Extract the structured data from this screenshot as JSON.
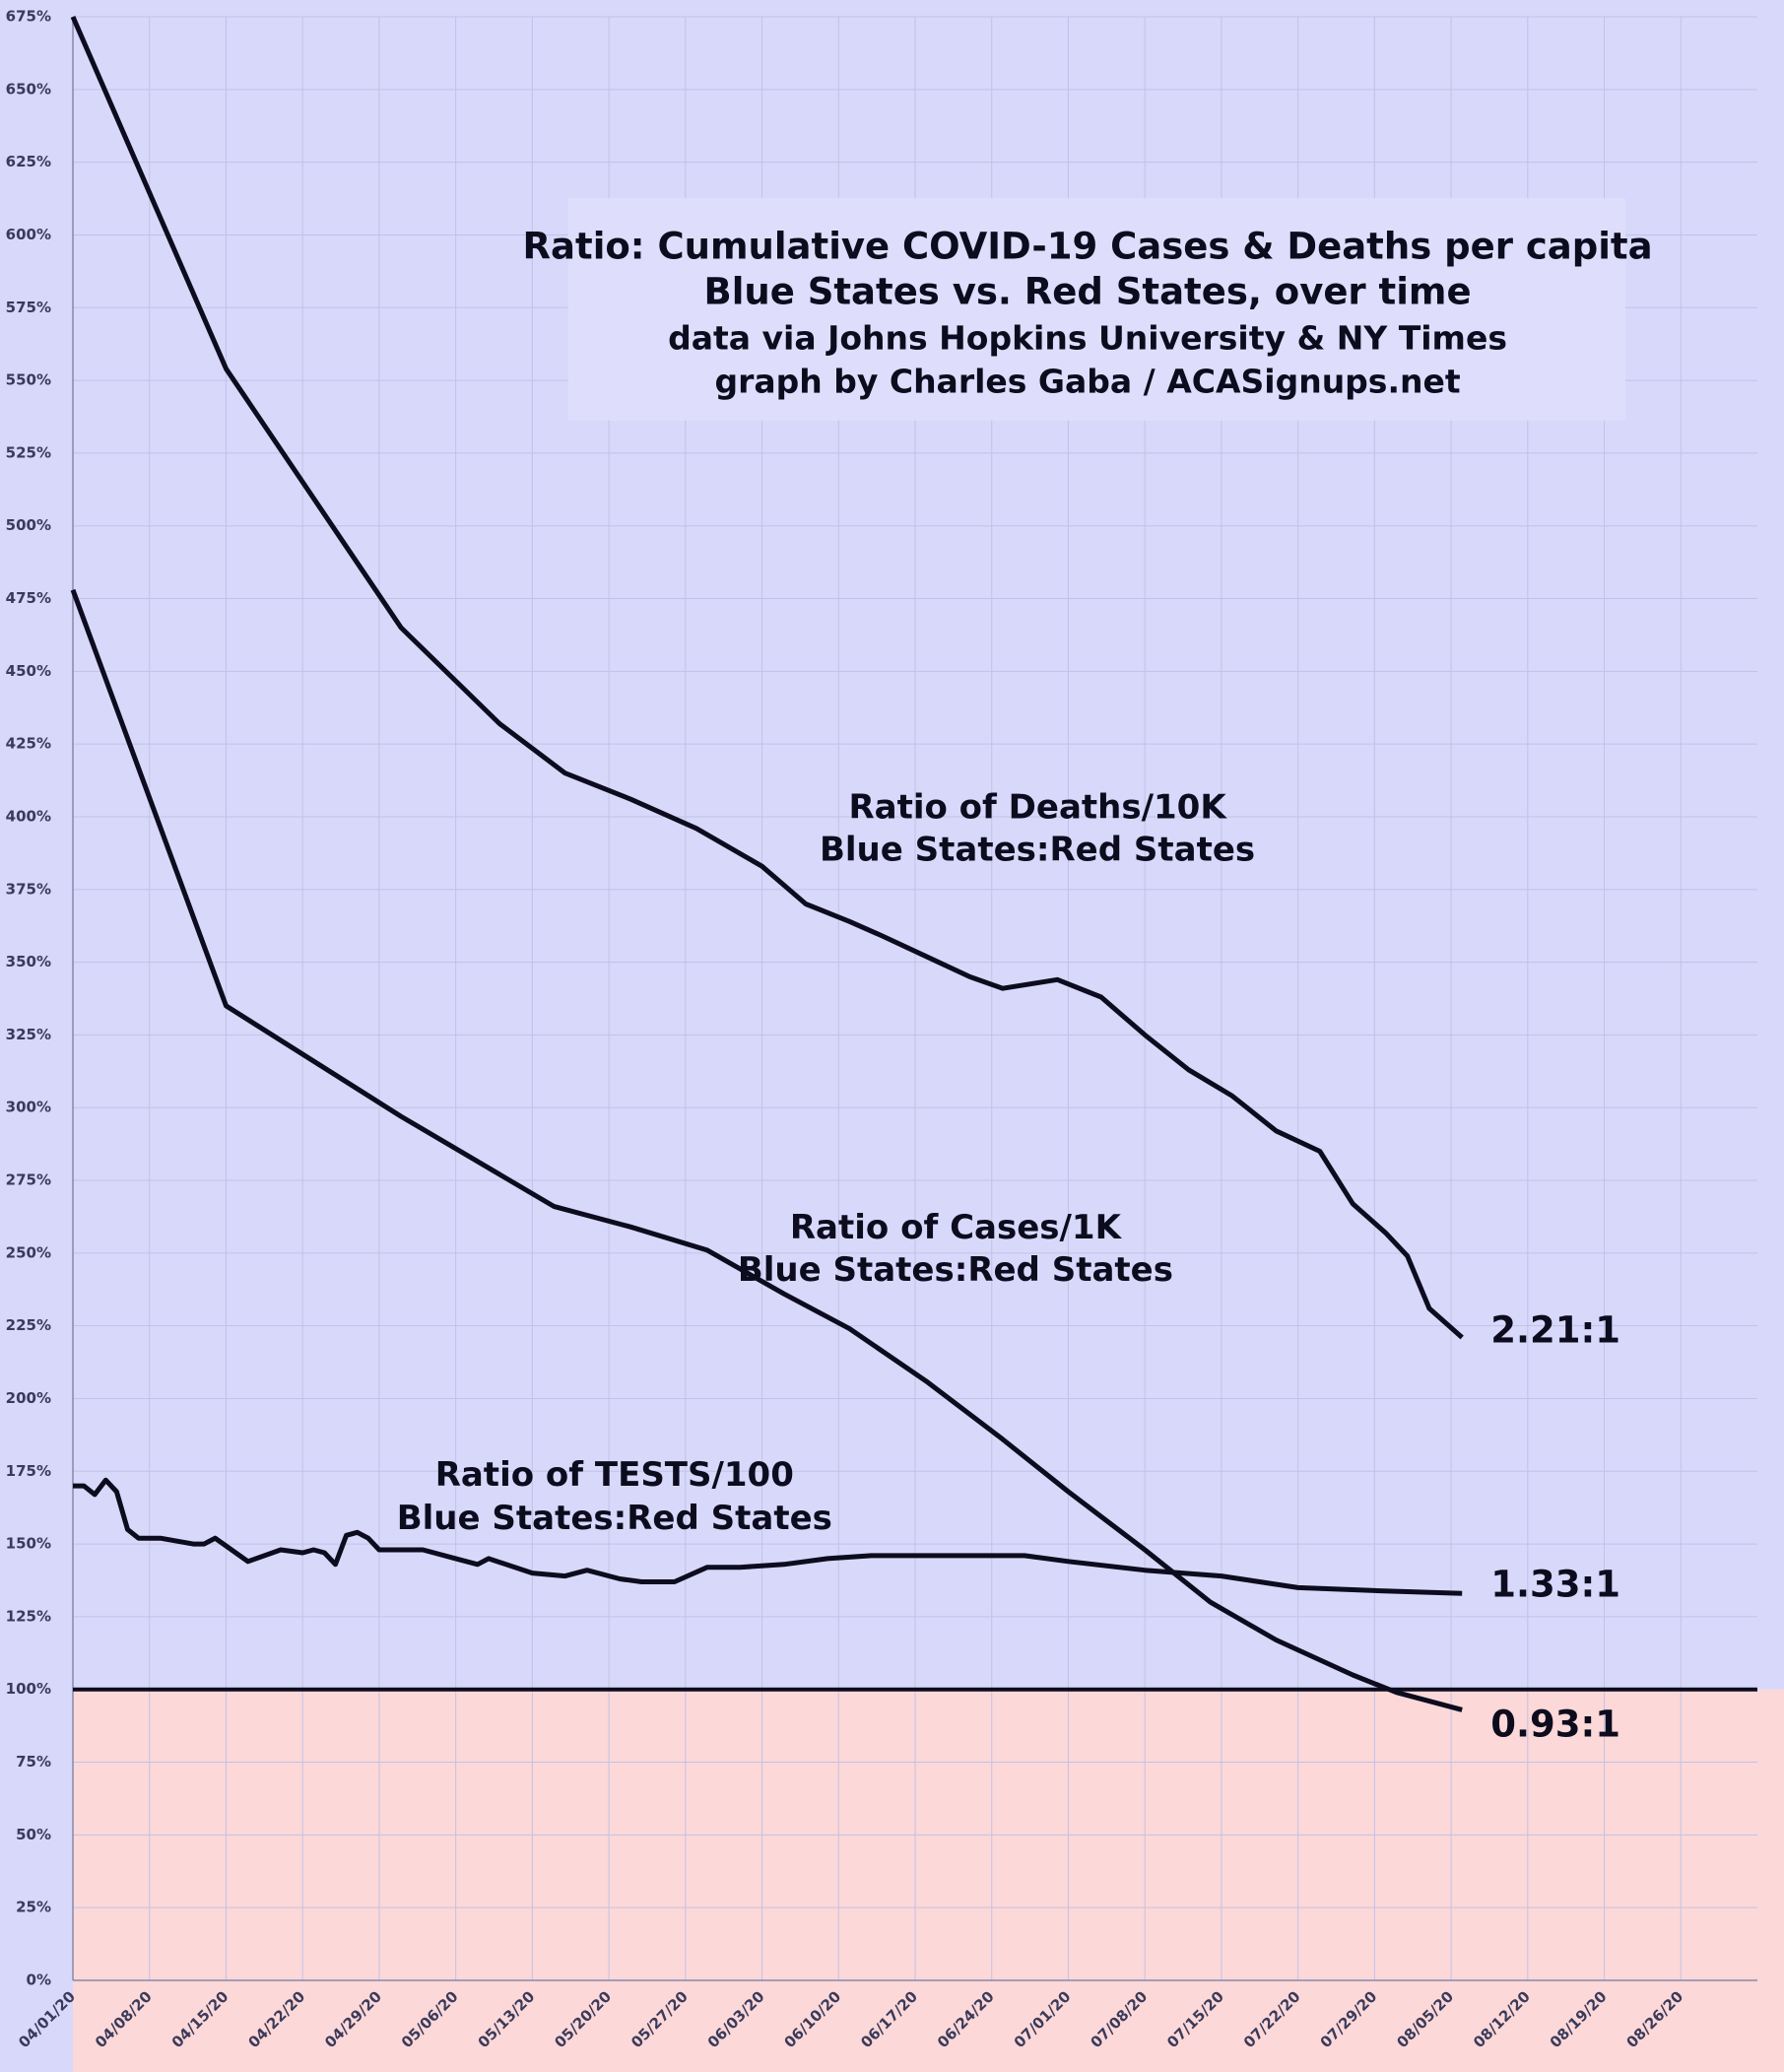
{
  "chart_data": {
    "type": "line",
    "title": [
      "Ratio: Cumulative COVID-19 Cases & Deaths per capita",
      "Blue States vs. Red States, over time",
      "data via Johns Hopkins University & NY Times",
      "graph by Charles Gaba / ACASignups.net"
    ],
    "xlim": [
      "04/01/20",
      "09/02/20"
    ],
    "xticks": [
      "04/01/20",
      "04/08/20",
      "04/15/20",
      "04/22/20",
      "04/29/20",
      "05/06/20",
      "05/13/20",
      "05/20/20",
      "05/27/20",
      "06/03/20",
      "06/10/20",
      "06/17/20",
      "06/24/20",
      "07/01/20",
      "07/08/20",
      "07/15/20",
      "07/22/20",
      "07/29/20",
      "08/05/20",
      "08/12/20",
      "08/19/20",
      "08/26/20"
    ],
    "ylim": [
      0,
      675
    ],
    "yticks": [
      {
        "value": 0,
        "label": "0%"
      },
      {
        "value": 25,
        "label": "25%"
      },
      {
        "value": 50,
        "label": "50%"
      },
      {
        "value": 75,
        "label": "75%"
      },
      {
        "value": 100,
        "label": "100%"
      },
      {
        "value": 125,
        "label": "125%"
      },
      {
        "value": 150,
        "label": "150%"
      },
      {
        "value": 175,
        "label": "175%"
      },
      {
        "value": 200,
        "label": "200%"
      },
      {
        "value": 225,
        "label": "225%"
      },
      {
        "value": 250,
        "label": "250%"
      },
      {
        "value": 275,
        "label": "275%"
      },
      {
        "value": 300,
        "label": "300%"
      },
      {
        "value": 325,
        "label": "325%"
      },
      {
        "value": 350,
        "label": "350%"
      },
      {
        "value": 375,
        "label": "375%"
      },
      {
        "value": 400,
        "label": "400%"
      },
      {
        "value": 425,
        "label": "425%"
      },
      {
        "value": 450,
        "label": "450%"
      },
      {
        "value": 475,
        "label": "475%"
      },
      {
        "value": 500,
        "label": "500%"
      },
      {
        "value": 525,
        "label": "525%"
      },
      {
        "value": 550,
        "label": "550%"
      },
      {
        "value": 575,
        "label": "575%"
      },
      {
        "value": 600,
        "label": "600%"
      },
      {
        "value": 625,
        "label": "625%"
      },
      {
        "value": 650,
        "label": "650%"
      },
      {
        "value": 675,
        "label": "675%"
      }
    ],
    "grid": true,
    "threshold": 100,
    "above_color": "#d8d8fb",
    "below_color": "#fcd8d8",
    "series": [
      {
        "name": "Ratio of Deaths/10K",
        "subname": "Blue States:Red States",
        "end_label": "2.21:1",
        "color": "#0c0c1e",
        "x": [
          "04/01/20",
          "04/15/20",
          "05/01/20",
          "05/10/20",
          "05/16/20",
          "05/22/20",
          "05/28/20",
          "06/03/20",
          "06/07/20",
          "06/11/20",
          "06/14/20",
          "06/18/20",
          "06/22/20",
          "06/25/20",
          "06/30/20",
          "07/04/20",
          "07/08/20",
          "07/12/20",
          "07/16/20",
          "07/20/20",
          "07/24/20",
          "07/27/20",
          "07/30/20",
          "08/01/20",
          "08/03/20",
          "08/06/20"
        ],
        "values": [
          675,
          554,
          465,
          432,
          415,
          406,
          396,
          383,
          370,
          364,
          359,
          352,
          345,
          341,
          344,
          338,
          325,
          313,
          304,
          292,
          285,
          267,
          257,
          249,
          231,
          221
        ]
      },
      {
        "name": "Ratio of Cases/1K",
        "subname": "Blue States:Red States",
        "end_label": "0.93:1",
        "color": "#0c0c1e",
        "x": [
          "04/01/20",
          "04/15/20",
          "05/01/20",
          "05/15/20",
          "05/22/20",
          "05/29/20",
          "06/05/20",
          "06/11/20",
          "06/18/20",
          "06/25/20",
          "07/01/20",
          "07/08/20",
          "07/14/20",
          "07/20/20",
          "07/27/20",
          "07/31/20",
          "08/03/20",
          "08/06/20"
        ],
        "values": [
          478,
          335,
          297,
          266,
          259,
          251,
          236,
          224,
          206,
          186,
          168,
          148,
          130,
          117,
          105,
          99,
          96,
          93
        ]
      },
      {
        "name": "Ratio of TESTS/100",
        "subname": "Blue States:Red States",
        "end_label": "1.33:1",
        "color": "#0c0c1e",
        "x": [
          "04/01/20",
          "04/02/20",
          "04/03/20",
          "04/04/20",
          "04/05/20",
          "04/06/20",
          "04/07/20",
          "04/09/20",
          "04/12/20",
          "04/13/20",
          "04/14/20",
          "04/17/20",
          "04/20/20",
          "04/22/20",
          "04/23/20",
          "04/24/20",
          "04/25/20",
          "04/26/20",
          "04/27/20",
          "04/28/20",
          "04/29/20",
          "05/02/20",
          "05/03/20",
          "05/06/20",
          "05/08/20",
          "05/09/20",
          "05/13/20",
          "05/16/20",
          "05/18/20",
          "05/21/20",
          "05/23/20",
          "05/26/20",
          "05/29/20",
          "06/01/20",
          "06/05/20",
          "06/09/20",
          "06/13/20",
          "06/20/20",
          "06/27/20",
          "07/01/20",
          "07/08/20",
          "07/15/20",
          "07/22/20",
          "07/29/20",
          "08/06/20"
        ],
        "values": [
          170,
          170,
          167,
          172,
          168,
          155,
          152,
          152,
          150,
          150,
          152,
          144,
          148,
          147,
          148,
          147,
          143,
          153,
          154,
          152,
          148,
          148,
          148,
          145,
          143,
          145,
          140,
          139,
          141,
          138,
          137,
          137,
          142,
          142,
          143,
          145,
          146,
          146,
          146,
          144,
          141,
          139,
          135,
          134,
          133
        ]
      }
    ]
  }
}
